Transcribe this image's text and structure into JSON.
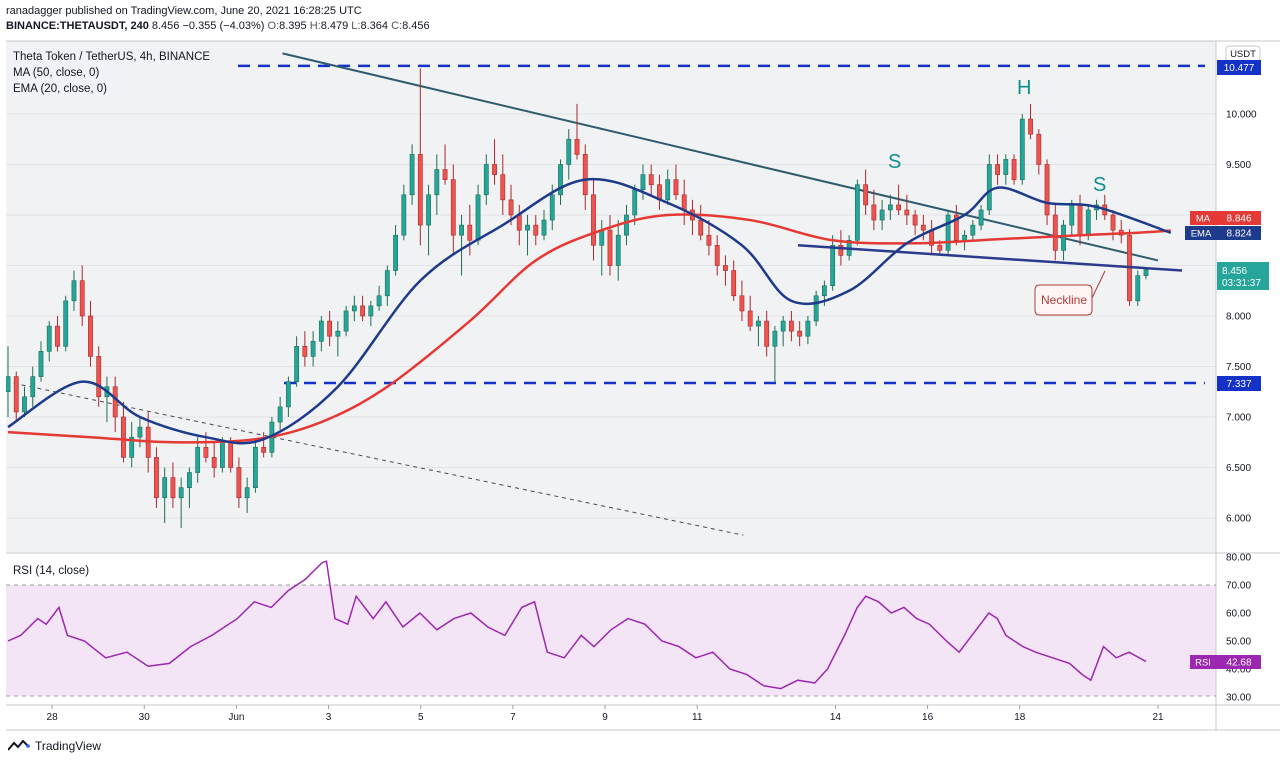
{
  "header": {
    "published": "ranadagger published on TradingView.com, June 20, 2021 16:28:25 UTC",
    "symbol": "BINANCE:THETAUSDT, 240",
    "last": "8.456",
    "change": "−0.355 (−4.03%)",
    "o_label": "O:",
    "o": "8.395",
    "h_label": "H:",
    "h": "8.479",
    "l_label": "L:",
    "l": "8.364",
    "c_label": "C:",
    "c": "8.456"
  },
  "legend": {
    "title": "Theta Token / TetherUS, 4h, BINANCE",
    "ma": "MA (50, close, 0)",
    "ema": "EMA (20, close, 0)",
    "rsi": "RSI (14, close)"
  },
  "price_axis": {
    "currency": "USDT",
    "ticks": [
      "10.000",
      "9.500",
      "9.000",
      "8.500",
      "8.000",
      "7.500",
      "7.000",
      "6.500",
      "6.000"
    ]
  },
  "rsi_axis": {
    "ticks": [
      "80.00",
      "70.00",
      "60.00",
      "50.00",
      "40.00",
      "30.00"
    ]
  },
  "time_axis": {
    "labels": [
      "28",
      "30",
      "Jun",
      "3",
      "5",
      "7",
      "9",
      "11",
      "14",
      "16",
      "18",
      "21"
    ]
  },
  "badges": {
    "top_level": "10.477",
    "bottom_level": "7.337",
    "ma_label": "MA",
    "ma_value": "8.846",
    "ema_label": "EMA",
    "ema_value": "8.824",
    "price": "8.456",
    "countdown": "03:31:37",
    "rsi_label": "RSI",
    "rsi_value": "42.68"
  },
  "annotations": {
    "left_shoulder": "S",
    "head": "H",
    "right_shoulder": "S",
    "neckline": "Neckline"
  },
  "footer": {
    "brand": "TradingView"
  },
  "colors": {
    "up": "#26a69a",
    "up_dark": "#1e6e52",
    "down": "#ef5350",
    "down_dark": "#a52a2a",
    "ema": "#1e3a8a",
    "ma": "#e53935",
    "level": "#1432c8",
    "trend": "#2f5b6e",
    "rsi_line": "#9c27b0",
    "rsi_band": "#f3e5f5",
    "pattern_text": "#0d8f8f",
    "neckline": "#2a3a8c"
  },
  "chart_data": {
    "type": "candlestick",
    "title": "Theta Token / TetherUS, 4h, BINANCE",
    "x_range": [
      "2021-05-27",
      "2021-06-21"
    ],
    "y_range": [
      5.8,
      10.6
    ],
    "rsi_range": [
      26,
      81
    ],
    "ohlc": [
      [
        7.25,
        7.7,
        7.0,
        7.4
      ],
      [
        7.4,
        7.45,
        6.95,
        7.05
      ],
      [
        7.05,
        7.3,
        7.0,
        7.2
      ],
      [
        7.2,
        7.5,
        7.1,
        7.4
      ],
      [
        7.4,
        7.75,
        7.35,
        7.65
      ],
      [
        7.65,
        7.95,
        7.55,
        7.9
      ],
      [
        7.9,
        8.0,
        7.65,
        7.7
      ],
      [
        7.7,
        8.2,
        7.65,
        8.15
      ],
      [
        8.15,
        8.45,
        8.05,
        8.35
      ],
      [
        8.35,
        8.5,
        7.9,
        8.0
      ],
      [
        8.0,
        8.15,
        7.5,
        7.6
      ],
      [
        7.6,
        7.7,
        7.1,
        7.2
      ],
      [
        7.2,
        7.4,
        6.95,
        7.3
      ],
      [
        7.3,
        7.4,
        6.85,
        7.0
      ],
      [
        7.0,
        7.15,
        6.55,
        6.6
      ],
      [
        6.6,
        6.95,
        6.5,
        6.8
      ],
      [
        6.8,
        7.0,
        6.7,
        6.9
      ],
      [
        6.9,
        7.05,
        6.45,
        6.6
      ],
      [
        6.6,
        6.7,
        6.1,
        6.2
      ],
      [
        6.2,
        6.5,
        5.95,
        6.4
      ],
      [
        6.4,
        6.55,
        6.1,
        6.2
      ],
      [
        6.2,
        6.4,
        5.9,
        6.3
      ],
      [
        6.3,
        6.5,
        6.1,
        6.45
      ],
      [
        6.45,
        6.8,
        6.35,
        6.7
      ],
      [
        6.7,
        6.85,
        6.55,
        6.6
      ],
      [
        6.6,
        6.75,
        6.4,
        6.5
      ],
      [
        6.5,
        6.8,
        6.45,
        6.75
      ],
      [
        6.75,
        6.8,
        6.45,
        6.5
      ],
      [
        6.5,
        6.6,
        6.1,
        6.2
      ],
      [
        6.2,
        6.4,
        6.05,
        6.3
      ],
      [
        6.3,
        6.75,
        6.25,
        6.7
      ],
      [
        6.7,
        6.85,
        6.6,
        6.65
      ],
      [
        6.65,
        7.0,
        6.6,
        6.95
      ],
      [
        6.95,
        7.2,
        6.85,
        7.1
      ],
      [
        7.1,
        7.4,
        7.0,
        7.35
      ],
      [
        7.35,
        7.8,
        7.3,
        7.7
      ],
      [
        7.7,
        7.85,
        7.5,
        7.6
      ],
      [
        7.6,
        7.85,
        7.5,
        7.75
      ],
      [
        7.75,
        8.0,
        7.65,
        7.95
      ],
      [
        7.95,
        8.05,
        7.7,
        7.8
      ],
      [
        7.8,
        7.95,
        7.6,
        7.85
      ],
      [
        7.85,
        8.1,
        7.8,
        8.05
      ],
      [
        8.05,
        8.2,
        7.95,
        8.1
      ],
      [
        8.1,
        8.2,
        7.95,
        8.0
      ],
      [
        8.0,
        8.15,
        7.9,
        8.1
      ],
      [
        8.1,
        8.3,
        8.05,
        8.2
      ],
      [
        8.2,
        8.5,
        8.1,
        8.45
      ],
      [
        8.45,
        8.9,
        8.4,
        8.8
      ],
      [
        8.8,
        9.3,
        8.75,
        9.2
      ],
      [
        9.2,
        9.7,
        9.1,
        9.6
      ],
      [
        9.6,
        10.45,
        8.7,
        8.9
      ],
      [
        8.9,
        9.3,
        8.6,
        9.2
      ],
      [
        9.2,
        9.6,
        9.0,
        9.45
      ],
      [
        9.45,
        9.7,
        9.3,
        9.35
      ],
      [
        9.35,
        9.5,
        8.6,
        8.8
      ],
      [
        8.8,
        9.0,
        8.4,
        8.9
      ],
      [
        8.9,
        9.1,
        8.6,
        8.75
      ],
      [
        8.75,
        9.3,
        8.7,
        9.2
      ],
      [
        9.2,
        9.6,
        9.1,
        9.5
      ],
      [
        9.5,
        9.75,
        9.3,
        9.4
      ],
      [
        9.4,
        9.6,
        9.0,
        9.15
      ],
      [
        9.15,
        9.3,
        8.9,
        9.0
      ],
      [
        9.0,
        9.1,
        8.7,
        8.85
      ],
      [
        8.85,
        9.0,
        8.6,
        8.9
      ],
      [
        8.9,
        9.0,
        8.7,
        8.8
      ],
      [
        8.8,
        9.05,
        8.75,
        8.95
      ],
      [
        8.95,
        9.3,
        8.85,
        9.2
      ],
      [
        9.2,
        9.55,
        9.1,
        9.5
      ],
      [
        9.5,
        9.85,
        9.35,
        9.75
      ],
      [
        9.75,
        10.1,
        9.55,
        9.6
      ],
      [
        9.6,
        9.7,
        9.05,
        9.2
      ],
      [
        9.2,
        9.35,
        8.55,
        8.7
      ],
      [
        8.7,
        8.95,
        8.4,
        8.85
      ],
      [
        8.85,
        9.0,
        8.4,
        8.5
      ],
      [
        8.5,
        8.95,
        8.35,
        8.8
      ],
      [
        8.8,
        9.1,
        8.7,
        9.0
      ],
      [
        9.0,
        9.3,
        8.9,
        9.25
      ],
      [
        9.25,
        9.5,
        9.15,
        9.4
      ],
      [
        9.4,
        9.5,
        9.2,
        9.3
      ],
      [
        9.3,
        9.4,
        9.05,
        9.15
      ],
      [
        9.15,
        9.45,
        9.1,
        9.35
      ],
      [
        9.35,
        9.5,
        9.15,
        9.2
      ],
      [
        9.2,
        9.35,
        8.9,
        9.05
      ],
      [
        9.05,
        9.15,
        8.8,
        8.95
      ],
      [
        8.95,
        9.1,
        8.75,
        8.8
      ],
      [
        8.8,
        8.95,
        8.6,
        8.7
      ],
      [
        8.7,
        8.8,
        8.4,
        8.5
      ],
      [
        8.5,
        8.6,
        8.3,
        8.45
      ],
      [
        8.45,
        8.55,
        8.15,
        8.2
      ],
      [
        8.2,
        8.35,
        7.95,
        8.05
      ],
      [
        8.05,
        8.2,
        7.85,
        7.9
      ],
      [
        7.9,
        8.0,
        7.7,
        7.95
      ],
      [
        7.95,
        8.05,
        7.6,
        7.7
      ],
      [
        7.7,
        7.9,
        7.34,
        7.85
      ],
      [
        7.85,
        8.0,
        7.7,
        7.95
      ],
      [
        7.95,
        8.05,
        7.75,
        7.85
      ],
      [
        7.85,
        7.95,
        7.7,
        7.8
      ],
      [
        7.8,
        8.0,
        7.72,
        7.95
      ],
      [
        7.95,
        8.25,
        7.9,
        8.2
      ],
      [
        8.2,
        8.35,
        8.1,
        8.3
      ],
      [
        8.3,
        8.8,
        8.25,
        8.7
      ],
      [
        8.7,
        8.85,
        8.5,
        8.6
      ],
      [
        8.6,
        8.8,
        8.55,
        8.75
      ],
      [
        8.75,
        9.35,
        8.7,
        9.3
      ],
      [
        9.3,
        9.45,
        9.0,
        9.1
      ],
      [
        9.1,
        9.25,
        8.85,
        8.95
      ],
      [
        8.95,
        9.15,
        8.85,
        9.05
      ],
      [
        9.05,
        9.2,
        8.95,
        9.1
      ],
      [
        9.1,
        9.3,
        9.0,
        9.05
      ],
      [
        9.05,
        9.2,
        8.9,
        9.0
      ],
      [
        9.0,
        9.05,
        8.8,
        8.9
      ],
      [
        8.9,
        9.0,
        8.75,
        8.85
      ],
      [
        8.85,
        8.95,
        8.6,
        8.7
      ],
      [
        8.7,
        8.75,
        8.6,
        8.65
      ],
      [
        8.65,
        9.05,
        8.6,
        9.0
      ],
      [
        9.0,
        9.1,
        8.7,
        8.75
      ],
      [
        8.75,
        8.85,
        8.65,
        8.8
      ],
      [
        8.8,
        8.95,
        8.75,
        8.9
      ],
      [
        8.9,
        9.1,
        8.85,
        9.05
      ],
      [
        9.05,
        9.6,
        9.0,
        9.5
      ],
      [
        9.5,
        9.6,
        9.3,
        9.4
      ],
      [
        9.4,
        9.6,
        9.3,
        9.55
      ],
      [
        9.55,
        9.6,
        9.3,
        9.35
      ],
      [
        9.35,
        10.0,
        9.3,
        9.95
      ],
      [
        9.95,
        10.1,
        9.75,
        9.8
      ],
      [
        9.8,
        9.85,
        9.4,
        9.5
      ],
      [
        9.5,
        9.55,
        8.9,
        9.0
      ],
      [
        9.0,
        9.1,
        8.55,
        8.65
      ],
      [
        8.65,
        8.95,
        8.55,
        8.9
      ],
      [
        8.9,
        9.15,
        8.8,
        9.1
      ],
      [
        9.1,
        9.2,
        8.7,
        8.8
      ],
      [
        8.8,
        9.1,
        8.75,
        9.05
      ],
      [
        9.05,
        9.15,
        8.95,
        9.1
      ],
      [
        9.1,
        9.2,
        8.95,
        9.0
      ],
      [
        9.0,
        9.05,
        8.75,
        8.85
      ],
      [
        8.85,
        8.95,
        8.72,
        8.8
      ],
      [
        8.8,
        8.86,
        8.1,
        8.15
      ],
      [
        8.15,
        8.45,
        8.1,
        8.4
      ],
      [
        8.4,
        8.479,
        8.364,
        8.456
      ]
    ],
    "ema20": [
      [
        0,
        6.9
      ],
      [
        9,
        7.35
      ],
      [
        16,
        7.0
      ],
      [
        24,
        6.8
      ],
      [
        31,
        6.78
      ],
      [
        40,
        7.3
      ],
      [
        50,
        8.35
      ],
      [
        60,
        8.9
      ],
      [
        70,
        9.35
      ],
      [
        80,
        9.12
      ],
      [
        89,
        8.7
      ],
      [
        95,
        8.15
      ],
      [
        102,
        8.25
      ],
      [
        109,
        8.72
      ],
      [
        116,
        9.0
      ],
      [
        120,
        9.27
      ],
      [
        126,
        9.12
      ],
      [
        132,
        9.08
      ],
      [
        141,
        8.824
      ]
    ],
    "ma50": [
      [
        0,
        6.85
      ],
      [
        10,
        6.8
      ],
      [
        20,
        6.75
      ],
      [
        30,
        6.78
      ],
      [
        38,
        6.95
      ],
      [
        46,
        7.3
      ],
      [
        56,
        7.95
      ],
      [
        64,
        8.55
      ],
      [
        72,
        8.85
      ],
      [
        80,
        9.0
      ],
      [
        90,
        8.95
      ],
      [
        100,
        8.75
      ],
      [
        110,
        8.72
      ],
      [
        120,
        8.76
      ],
      [
        130,
        8.8
      ],
      [
        136,
        8.82
      ],
      [
        141,
        8.846
      ]
    ],
    "levels": {
      "resistance": 10.477,
      "support": 7.337
    },
    "trendlines": {
      "descending": {
        "from": [
          "2021-05-27",
          7.35
        ],
        "to": [
          "2021-06-12",
          5.83
        ]
      },
      "upper": {
        "from": [
          "2021-06-02",
          10.6
        ],
        "to": [
          "2021-06-21",
          8.55
        ]
      },
      "neckline": {
        "from": [
          "2021-06-13",
          8.7
        ],
        "to": [
          "2021-06-21",
          8.45
        ]
      }
    },
    "rsi": [
      [
        0,
        50
      ],
      [
        3,
        52
      ],
      [
        7,
        58
      ],
      [
        9,
        56
      ],
      [
        12,
        62
      ],
      [
        14,
        52
      ],
      [
        18,
        50
      ],
      [
        23,
        44
      ],
      [
        28,
        46
      ],
      [
        33,
        41
      ],
      [
        38,
        42
      ],
      [
        43,
        48
      ],
      [
        48,
        52
      ],
      [
        54,
        58
      ],
      [
        58,
        64
      ],
      [
        62,
        62
      ],
      [
        66,
        68
      ],
      [
        70,
        72
      ],
      [
        74,
        78
      ],
      [
        75,
        78.5
      ],
      [
        77,
        58
      ],
      [
        80,
        56
      ],
      [
        82,
        66
      ],
      [
        86,
        58
      ],
      [
        89,
        64
      ],
      [
        93,
        55
      ],
      [
        97,
        60
      ],
      [
        101,
        54
      ],
      [
        105,
        58
      ],
      [
        109,
        60
      ],
      [
        113,
        55
      ],
      [
        117,
        52
      ],
      [
        121,
        62
      ],
      [
        124,
        64
      ],
      [
        127,
        46
      ],
      [
        131,
        44
      ],
      [
        135,
        52
      ],
      [
        138,
        48
      ],
      [
        142,
        54
      ],
      [
        146,
        58
      ],
      [
        150,
        56
      ],
      [
        154,
        50
      ],
      [
        158,
        48
      ],
      [
        162,
        44
      ],
      [
        166,
        46
      ],
      [
        170,
        40
      ],
      [
        174,
        38
      ],
      [
        178,
        34
      ],
      [
        182,
        33
      ],
      [
        186,
        36
      ],
      [
        190,
        35
      ],
      [
        193,
        40
      ],
      [
        197,
        52
      ],
      [
        200,
        62
      ],
      [
        202,
        66
      ],
      [
        205,
        64
      ],
      [
        208,
        60
      ],
      [
        211,
        62
      ],
      [
        214,
        58
      ],
      [
        217,
        56
      ],
      [
        221,
        50
      ],
      [
        224,
        46
      ],
      [
        228,
        54
      ],
      [
        231,
        60
      ],
      [
        233,
        58
      ],
      [
        235,
        52
      ],
      [
        239,
        48
      ],
      [
        242,
        46
      ],
      [
        246,
        44
      ],
      [
        250,
        42
      ],
      [
        253,
        38
      ],
      [
        255,
        36
      ],
      [
        258,
        48
      ],
      [
        261,
        44
      ],
      [
        264,
        46
      ],
      [
        268,
        42.68
      ]
    ]
  }
}
